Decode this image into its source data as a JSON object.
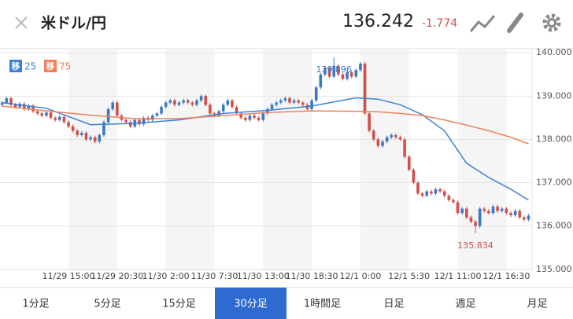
{
  "header": {
    "title": "米ドル/円",
    "price": "136.242",
    "change": "-1.774"
  },
  "chart_data": {
    "type": "candlestick",
    "categories": [
      null,
      null,
      null,
      null,
      null,
      null,
      null,
      null,
      null,
      null,
      null,
      null,
      null,
      null,
      null,
      "11/29 15:00",
      null,
      null,
      null,
      null,
      null,
      null,
      null,
      null,
      null,
      null,
      "11/29 20:30",
      null,
      null,
      null,
      null,
      null,
      null,
      null,
      null,
      null,
      null,
      "11/30 2:00",
      null,
      null,
      null,
      null,
      null,
      null,
      null,
      null,
      null,
      null,
      "11/30 7:30",
      null,
      null,
      null,
      null,
      null,
      null,
      null,
      null,
      null,
      null,
      "11/30 13:00",
      null,
      null,
      null,
      null,
      null,
      null,
      null,
      null,
      null,
      null,
      "11/30 18:30",
      null,
      null,
      null,
      null,
      null,
      null,
      null,
      null,
      null,
      null,
      "12/1 0:00",
      null,
      null,
      null,
      null,
      null,
      null,
      null,
      null,
      null,
      null,
      "12/1 5:30",
      null,
      null,
      null,
      null,
      null,
      null,
      null,
      null,
      null,
      null,
      "12/1 11:00",
      null,
      null,
      null,
      null,
      null,
      null,
      null,
      null,
      null,
      null,
      "12/1 16:30",
      null,
      null,
      null,
      null,
      null
    ],
    "open": [
      138.8,
      138.85,
      138.95,
      138.8,
      138.75,
      138.82,
      138.7,
      138.78,
      138.65,
      138.6,
      138.55,
      138.62,
      138.5,
      138.45,
      138.52,
      138.4,
      138.3,
      138.2,
      138.1,
      138.15,
      138.0,
      138.05,
      137.95,
      138.1,
      138.4,
      138.7,
      138.85,
      138.55,
      138.45,
      138.4,
      138.3,
      138.45,
      138.35,
      138.5,
      138.45,
      138.55,
      138.6,
      138.75,
      138.85,
      138.9,
      138.8,
      138.85,
      138.9,
      138.85,
      138.8,
      138.9,
      139.0,
      138.8,
      138.6,
      138.55,
      138.65,
      138.8,
      138.9,
      138.75,
      138.6,
      138.5,
      138.45,
      138.55,
      138.5,
      138.45,
      138.6,
      138.7,
      138.8,
      138.85,
      138.9,
      138.95,
      138.85,
      138.9,
      138.85,
      138.8,
      138.7,
      138.9,
      139.2,
      139.5,
      139.65,
      139.45,
      139.7,
      139.5,
      139.4,
      139.55,
      139.45,
      139.6,
      139.75,
      138.6,
      138.2,
      138.0,
      137.85,
      137.95,
      138.05,
      138.1,
      138.05,
      138.0,
      137.6,
      137.3,
      137.0,
      136.75,
      136.7,
      136.8,
      136.75,
      136.85,
      136.8,
      136.7,
      136.6,
      136.55,
      136.3,
      136.4,
      136.2,
      136.1,
      136.0,
      136.4,
      136.35,
      136.3,
      136.45,
      136.35,
      136.4,
      136.3,
      136.25,
      136.35,
      136.2,
      136.15
    ],
    "high": [
      138.89,
      138.99,
      138.99,
      138.84,
      138.86,
      138.86,
      138.82,
      138.82,
      138.69,
      138.64,
      138.66,
      138.66,
      138.54,
      138.56,
      138.56,
      138.44,
      138.34,
      138.24,
      138.19,
      138.19,
      138.09,
      138.09,
      138.14,
      138.44,
      138.74,
      138.89,
      138.89,
      138.59,
      138.49,
      138.44,
      138.49,
      138.49,
      138.54,
      138.54,
      138.59,
      138.64,
      138.79,
      138.89,
      138.94,
      138.94,
      138.89,
      138.94,
      138.94,
      138.89,
      138.94,
      139.04,
      139.04,
      138.84,
      138.64,
      138.69,
      138.84,
      138.94,
      138.94,
      138.79,
      138.64,
      138.54,
      138.59,
      138.59,
      138.54,
      138.64,
      138.74,
      138.84,
      138.89,
      138.94,
      138.99,
      138.99,
      138.94,
      138.94,
      138.89,
      138.84,
      138.94,
      139.24,
      139.54,
      139.69,
      139.69,
      139.896,
      139.74,
      139.54,
      139.59,
      139.59,
      139.64,
      139.79,
      139.79,
      138.64,
      138.24,
      138.04,
      137.99,
      138.09,
      138.14,
      138.14,
      138.09,
      138.04,
      137.64,
      137.34,
      137.04,
      136.79,
      136.84,
      136.84,
      136.89,
      136.89,
      136.84,
      136.74,
      136.64,
      136.59,
      136.44,
      136.44,
      136.24,
      136.14,
      136.44,
      136.44,
      136.39,
      136.49,
      136.49,
      136.44,
      136.44,
      136.34,
      136.39,
      136.39,
      136.24,
      136.28
    ],
    "low": [
      138.76,
      138.81,
      138.76,
      138.71,
      138.71,
      138.66,
      138.66,
      138.61,
      138.56,
      138.51,
      138.51,
      138.46,
      138.41,
      138.41,
      138.36,
      138.26,
      138.16,
      138.06,
      138.06,
      137.96,
      137.96,
      137.91,
      137.91,
      138.06,
      138.36,
      138.66,
      138.51,
      138.41,
      138.36,
      138.26,
      138.26,
      138.31,
      138.31,
      138.41,
      138.41,
      138.51,
      138.56,
      138.71,
      138.81,
      138.76,
      138.76,
      138.81,
      138.81,
      138.76,
      138.76,
      138.86,
      138.76,
      138.56,
      138.51,
      138.51,
      138.61,
      138.76,
      138.71,
      138.56,
      138.46,
      138.41,
      138.41,
      138.46,
      138.41,
      138.41,
      138.56,
      138.66,
      138.76,
      138.81,
      138.86,
      138.81,
      138.81,
      138.81,
      138.76,
      138.66,
      138.66,
      138.86,
      139.16,
      139.46,
      139.41,
      139.41,
      139.46,
      139.36,
      139.36,
      139.41,
      139.41,
      139.56,
      138.56,
      138.16,
      137.96,
      137.81,
      137.81,
      137.91,
      138.01,
      138.01,
      137.96,
      137.56,
      137.26,
      136.96,
      136.71,
      136.66,
      136.66,
      136.71,
      136.71,
      136.76,
      136.66,
      136.56,
      136.51,
      136.26,
      136.26,
      136.16,
      136.06,
      135.834,
      135.96,
      136.31,
      136.26,
      136.26,
      136.31,
      136.31,
      136.26,
      136.21,
      136.21,
      136.16,
      136.11,
      136.11
    ],
    "close": [
      138.85,
      138.95,
      138.8,
      138.75,
      138.82,
      138.7,
      138.78,
      138.65,
      138.6,
      138.55,
      138.62,
      138.5,
      138.45,
      138.52,
      138.4,
      138.3,
      138.2,
      138.1,
      138.15,
      138.0,
      138.05,
      137.95,
      138.1,
      138.4,
      138.7,
      138.85,
      138.55,
      138.45,
      138.4,
      138.3,
      138.45,
      138.35,
      138.5,
      138.45,
      138.55,
      138.6,
      138.75,
      138.85,
      138.9,
      138.8,
      138.85,
      138.9,
      138.85,
      138.8,
      138.9,
      139.0,
      138.8,
      138.6,
      138.55,
      138.65,
      138.8,
      138.9,
      138.75,
      138.6,
      138.5,
      138.45,
      138.55,
      138.5,
      138.45,
      138.6,
      138.7,
      138.8,
      138.85,
      138.9,
      138.95,
      138.85,
      138.9,
      138.85,
      138.8,
      138.7,
      138.9,
      139.2,
      139.5,
      139.65,
      139.45,
      139.7,
      139.5,
      139.4,
      139.55,
      139.45,
      139.6,
      139.75,
      138.6,
      138.2,
      138.0,
      137.85,
      137.95,
      138.05,
      138.1,
      138.05,
      138.0,
      137.6,
      137.3,
      137.0,
      136.75,
      136.7,
      136.8,
      136.75,
      136.85,
      136.8,
      136.7,
      136.6,
      136.55,
      136.3,
      136.4,
      136.2,
      136.1,
      136.0,
      136.4,
      136.35,
      136.3,
      136.45,
      136.35,
      136.4,
      136.3,
      136.25,
      136.35,
      136.2,
      136.15,
      136.24
    ],
    "up_color": "#3b78c8",
    "down_color": "#d0504a",
    "series": [
      {
        "name": "移",
        "period": 25,
        "color": "#3b82d6",
        "x": [
          0,
          10,
          20,
          30,
          40,
          50,
          60,
          70,
          80,
          85,
          90,
          95,
          100,
          105,
          110,
          115,
          119
        ],
        "values": [
          138.85,
          138.72,
          138.34,
          138.37,
          138.45,
          138.6,
          138.67,
          138.77,
          138.96,
          138.93,
          138.8,
          138.57,
          138.2,
          137.45,
          137.12,
          136.85,
          136.6
        ]
      },
      {
        "name": "移",
        "period": 75,
        "color": "#f0805a",
        "x": [
          0,
          10,
          20,
          30,
          40,
          50,
          60,
          70,
          80,
          85,
          90,
          95,
          100,
          105,
          110,
          115,
          119
        ],
        "values": [
          138.77,
          138.66,
          138.56,
          138.48,
          138.48,
          138.55,
          138.62,
          138.66,
          138.65,
          138.64,
          138.6,
          138.55,
          138.45,
          138.33,
          138.2,
          138.05,
          137.9
        ]
      }
    ],
    "ylim": [
      134.96,
      140.04
    ],
    "yticks": [
      {
        "value": 135,
        "label": "135.000"
      },
      {
        "value": 136,
        "label": "136.000"
      },
      {
        "value": 137,
        "label": "137.000"
      },
      {
        "value": 138,
        "label": "138.000"
      },
      {
        "value": 139,
        "label": "139.000"
      },
      {
        "value": 140,
        "label": "140.000"
      }
    ],
    "grid": true
  },
  "tabs": [
    {
      "label": "1分足",
      "selected": false
    },
    {
      "label": "5分足",
      "selected": false
    },
    {
      "label": "15分足",
      "selected": false
    },
    {
      "label": "30分足",
      "selected": true
    },
    {
      "label": "1時間足",
      "selected": false
    },
    {
      "label": "日足",
      "selected": false
    },
    {
      "label": "週足",
      "selected": false
    },
    {
      "label": "月足",
      "selected": false
    }
  ]
}
